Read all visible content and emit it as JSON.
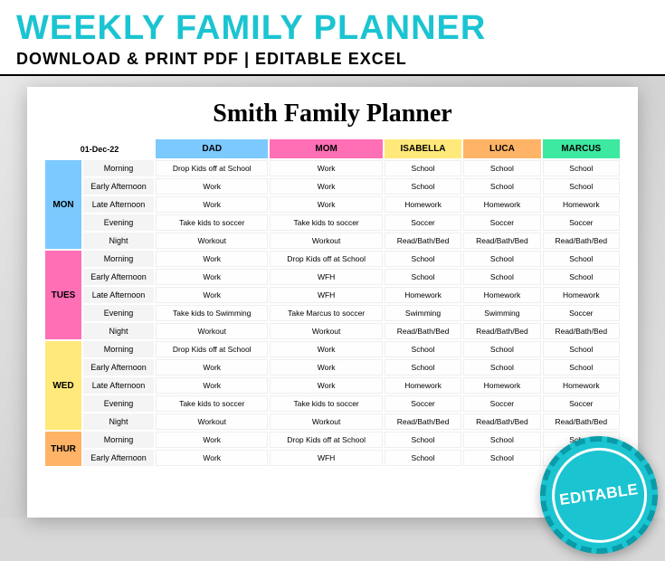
{
  "banner": {
    "title": "WEEKLY FAMILY PLANNER",
    "subtitle": "DOWNLOAD & PRINT PDF   |   EDITABLE EXCEL",
    "title_color": "#1bc4d1"
  },
  "badge": {
    "text": "EDITABLE",
    "bg_color": "#1bc4d1"
  },
  "planner": {
    "title": "Smith Family Planner",
    "date": "01-Dec-22",
    "members": [
      {
        "name": "DAD",
        "color": "#7cc9ff"
      },
      {
        "name": "MOM",
        "color": "#ff6fb5"
      },
      {
        "name": "ISABELLA",
        "color": "#ffe97a"
      },
      {
        "name": "LUCA",
        "color": "#ffb366"
      },
      {
        "name": "MARCUS",
        "color": "#3de8a0"
      }
    ],
    "time_slots": [
      "Morning",
      "Early Afternoon",
      "Late Afternoon",
      "Evening",
      "Night"
    ],
    "days": [
      {
        "label": "MON",
        "color": "#7cc9ff",
        "rows": [
          [
            "Drop Kids off at School",
            "Work",
            "School",
            "School",
            "School"
          ],
          [
            "Work",
            "Work",
            "School",
            "School",
            "School"
          ],
          [
            "Work",
            "Work",
            "Homework",
            "Homework",
            "Homework"
          ],
          [
            "Take kids to soccer",
            "Take kids to soccer",
            "Soccer",
            "Soccer",
            "Soccer"
          ],
          [
            "Workout",
            "Workout",
            "Read/Bath/Bed",
            "Read/Bath/Bed",
            "Read/Bath/Bed"
          ]
        ]
      },
      {
        "label": "TUES",
        "color": "#ff6fb5",
        "rows": [
          [
            "Work",
            "Drop Kids off at School",
            "School",
            "School",
            "School"
          ],
          [
            "Work",
            "WFH",
            "School",
            "School",
            "School"
          ],
          [
            "Work",
            "WFH",
            "Homework",
            "Homework",
            "Homework"
          ],
          [
            "Take kids to Swimming",
            "Take Marcus to soccer",
            "Swimming",
            "Swimming",
            "Soccer"
          ],
          [
            "Workout",
            "Workout",
            "Read/Bath/Bed",
            "Read/Bath/Bed",
            "Read/Bath/Bed"
          ]
        ]
      },
      {
        "label": "WED",
        "color": "#ffe97a",
        "rows": [
          [
            "Drop Kids off at School",
            "Work",
            "School",
            "School",
            "School"
          ],
          [
            "Work",
            "Work",
            "School",
            "School",
            "School"
          ],
          [
            "Work",
            "Work",
            "Homework",
            "Homework",
            "Homework"
          ],
          [
            "Take kids to soccer",
            "Take kids to soccer",
            "Soccer",
            "Soccer",
            "Soccer"
          ],
          [
            "Workout",
            "Workout",
            "Read/Bath/Bed",
            "Read/Bath/Bed",
            "Read/Bath/Bed"
          ]
        ]
      },
      {
        "label": "THUR",
        "color": "#ffb366",
        "rows": [
          [
            "Work",
            "Drop Kids off at School",
            "School",
            "School",
            "School"
          ],
          [
            "Work",
            "WFH",
            "School",
            "School",
            "School"
          ]
        ]
      }
    ]
  },
  "style": {
    "header_row_bg": "#f0f0f0",
    "slot_bg": "#f4f4f4",
    "cell_bg": "#ffffff"
  }
}
